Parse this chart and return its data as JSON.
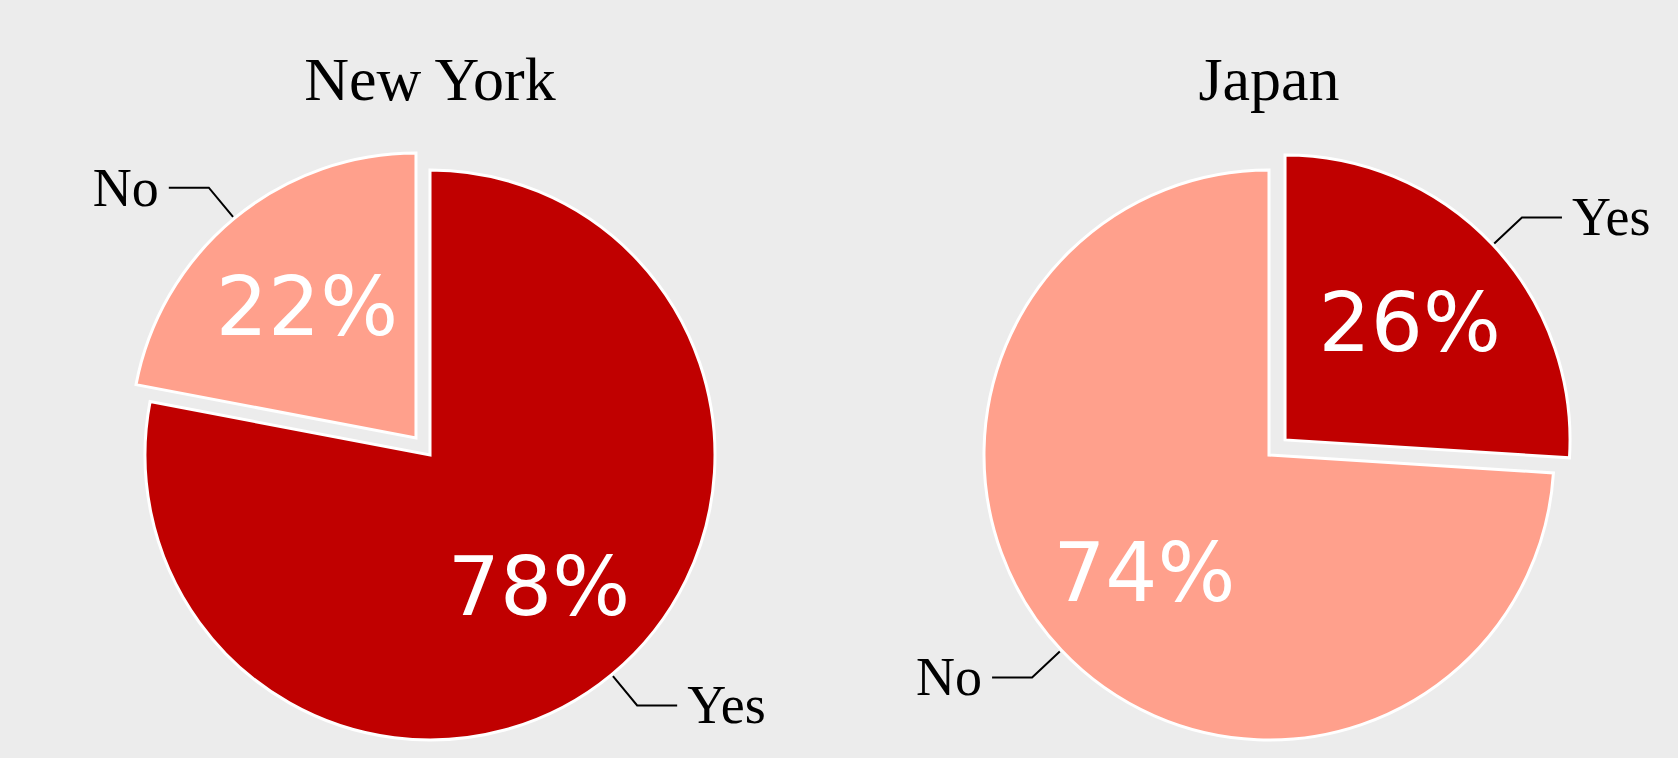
{
  "chart_data": [
    {
      "type": "pie",
      "title": "New York",
      "categories": [
        "Yes",
        "No"
      ],
      "values": [
        78,
        22
      ],
      "value_labels": [
        "78%",
        "22%"
      ],
      "colors": [
        "#c00000",
        "#ffa08c"
      ]
    },
    {
      "type": "pie",
      "title": "Japan",
      "categories": [
        "Yes",
        "No"
      ],
      "values": [
        26,
        74
      ],
      "value_labels": [
        "26%",
        "74%"
      ],
      "colors": [
        "#c00000",
        "#ffa08c"
      ]
    }
  ]
}
